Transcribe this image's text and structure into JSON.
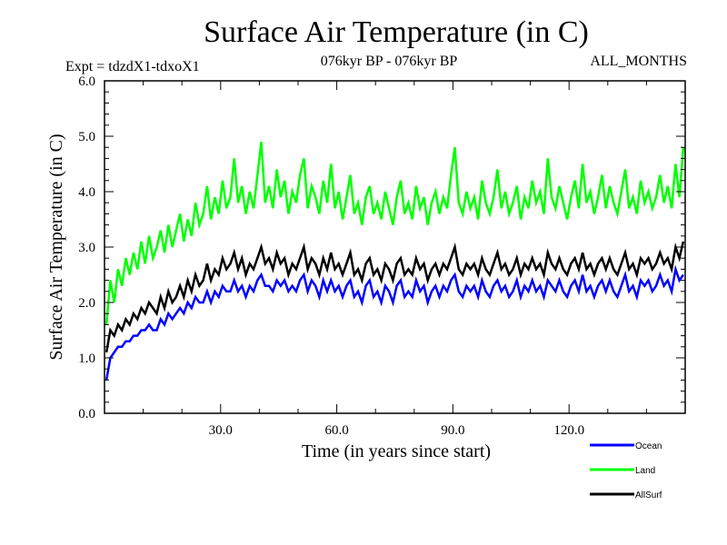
{
  "chart_data": {
    "type": "line",
    "title": "Surface Air Temperature (in C)",
    "subtitle_left": "Expt = tdzdX1-tdxoX1",
    "subtitle_center": "076kyr BP - 076kyr BP",
    "subtitle_right": "ALL_MONTHS",
    "xlabel": "Time (in years since start)",
    "ylabel": "Surface Air Temperature (in C)",
    "xlim": [
      0,
      150
    ],
    "ylim": [
      0.0,
      6.0
    ],
    "x_ticks": [
      30,
      60,
      90,
      120
    ],
    "x_tick_labels": [
      "30.0",
      "60.0",
      "90.0",
      "120.0"
    ],
    "x_minor_step": 10,
    "y_ticks": [
      0,
      1,
      2,
      3,
      4,
      5,
      6
    ],
    "y_tick_labels": [
      "0.0",
      "1.0",
      "2.0",
      "3.0",
      "4.0",
      "5.0",
      "6.0"
    ],
    "y_minor_step": 0.2,
    "grid": false,
    "legend_position": "bottom-right",
    "x_start": 0.5,
    "x_step": 1,
    "series": [
      {
        "name": "Land",
        "color": "#00ff00",
        "values": [
          1.6,
          2.4,
          2.0,
          2.6,
          2.3,
          2.8,
          2.5,
          2.9,
          2.6,
          3.1,
          2.7,
          3.2,
          2.8,
          3.0,
          3.3,
          2.9,
          3.4,
          3.0,
          3.3,
          3.6,
          3.1,
          3.5,
          3.2,
          3.8,
          3.4,
          3.6,
          4.1,
          3.5,
          3.9,
          3.6,
          4.2,
          3.7,
          3.9,
          4.6,
          3.8,
          4.1,
          3.6,
          4.0,
          3.7,
          4.3,
          4.9,
          3.8,
          4.1,
          3.7,
          4.4,
          3.9,
          4.2,
          3.6,
          4.0,
          3.8,
          4.3,
          4.6,
          3.7,
          4.1,
          3.9,
          3.6,
          4.2,
          3.8,
          4.5,
          3.7,
          4.0,
          3.5,
          3.9,
          4.3,
          3.6,
          3.8,
          3.4,
          3.9,
          4.1,
          3.6,
          3.8,
          3.5,
          4.0,
          3.7,
          3.4,
          3.9,
          4.2,
          3.6,
          3.8,
          3.5,
          4.1,
          3.7,
          3.9,
          3.4,
          3.8,
          4.0,
          3.6,
          3.9,
          3.7,
          4.3,
          4.8,
          3.8,
          3.6,
          4.0,
          3.7,
          3.9,
          3.5,
          4.2,
          3.8,
          3.6,
          3.9,
          4.4,
          3.7,
          4.0,
          3.6,
          3.8,
          4.1,
          3.5,
          3.9,
          3.7,
          4.2,
          3.8,
          4.0,
          3.6,
          4.6,
          3.9,
          3.7,
          4.1,
          3.8,
          3.5,
          3.9,
          4.2,
          3.7,
          4.5,
          3.8,
          4.0,
          3.6,
          3.9,
          4.3,
          3.7,
          4.1,
          3.8,
          3.6,
          4.0,
          4.4,
          3.7,
          3.9,
          3.6,
          4.2,
          3.8,
          4.0,
          3.7,
          3.9,
          4.3,
          3.8,
          4.1,
          3.7,
          4.5,
          3.9,
          4.8
        ]
      },
      {
        "name": "AllSurf",
        "color": "#000000",
        "values": [
          1.1,
          1.5,
          1.4,
          1.6,
          1.5,
          1.7,
          1.6,
          1.8,
          1.7,
          1.9,
          1.8,
          2.0,
          1.9,
          1.8,
          2.1,
          1.9,
          2.2,
          2.0,
          2.1,
          2.3,
          2.1,
          2.4,
          2.2,
          2.5,
          2.3,
          2.4,
          2.7,
          2.4,
          2.6,
          2.5,
          2.8,
          2.6,
          2.7,
          2.9,
          2.6,
          2.8,
          2.5,
          2.7,
          2.6,
          2.8,
          3.0,
          2.7,
          2.8,
          2.6,
          2.9,
          2.7,
          2.8,
          2.5,
          2.7,
          2.6,
          2.8,
          3.0,
          2.6,
          2.8,
          2.7,
          2.5,
          2.8,
          2.6,
          2.9,
          2.6,
          2.7,
          2.5,
          2.7,
          2.9,
          2.5,
          2.6,
          2.4,
          2.7,
          2.8,
          2.5,
          2.6,
          2.4,
          2.7,
          2.6,
          2.4,
          2.7,
          2.8,
          2.5,
          2.6,
          2.5,
          2.8,
          2.6,
          2.7,
          2.4,
          2.6,
          2.7,
          2.5,
          2.7,
          2.6,
          2.8,
          3.0,
          2.6,
          2.5,
          2.7,
          2.6,
          2.7,
          2.5,
          2.8,
          2.6,
          2.5,
          2.7,
          2.9,
          2.6,
          2.7,
          2.5,
          2.6,
          2.8,
          2.5,
          2.7,
          2.6,
          2.8,
          2.6,
          2.7,
          2.5,
          2.9,
          2.7,
          2.6,
          2.8,
          2.6,
          2.5,
          2.7,
          2.8,
          2.6,
          2.9,
          2.6,
          2.7,
          2.5,
          2.7,
          2.8,
          2.6,
          2.8,
          2.6,
          2.5,
          2.7,
          2.9,
          2.6,
          2.7,
          2.5,
          2.8,
          2.7,
          2.8,
          2.6,
          2.7,
          2.9,
          2.7,
          2.8,
          2.6,
          3.0,
          2.8,
          3.1
        ]
      },
      {
        "name": "Ocean",
        "color": "#0000ff",
        "values": [
          0.6,
          1.0,
          1.1,
          1.2,
          1.2,
          1.3,
          1.3,
          1.4,
          1.4,
          1.5,
          1.5,
          1.6,
          1.5,
          1.5,
          1.7,
          1.6,
          1.8,
          1.7,
          1.8,
          1.9,
          1.8,
          2.0,
          1.9,
          2.1,
          2.0,
          2.0,
          2.2,
          2.0,
          2.2,
          2.1,
          2.3,
          2.2,
          2.2,
          2.4,
          2.2,
          2.3,
          2.1,
          2.3,
          2.2,
          2.4,
          2.5,
          2.3,
          2.3,
          2.2,
          2.4,
          2.3,
          2.4,
          2.2,
          2.3,
          2.2,
          2.4,
          2.5,
          2.2,
          2.4,
          2.3,
          2.1,
          2.4,
          2.2,
          2.4,
          2.2,
          2.3,
          2.1,
          2.3,
          2.4,
          2.1,
          2.2,
          2.0,
          2.3,
          2.4,
          2.1,
          2.2,
          2.0,
          2.3,
          2.2,
          2.0,
          2.3,
          2.4,
          2.1,
          2.2,
          2.1,
          2.4,
          2.2,
          2.3,
          2.0,
          2.2,
          2.3,
          2.1,
          2.3,
          2.2,
          2.4,
          2.5,
          2.2,
          2.1,
          2.3,
          2.2,
          2.3,
          2.1,
          2.4,
          2.2,
          2.1,
          2.3,
          2.4,
          2.2,
          2.3,
          2.1,
          2.2,
          2.4,
          2.1,
          2.3,
          2.2,
          2.4,
          2.2,
          2.3,
          2.1,
          2.4,
          2.3,
          2.2,
          2.4,
          2.2,
          2.1,
          2.3,
          2.4,
          2.2,
          2.5,
          2.2,
          2.3,
          2.1,
          2.3,
          2.4,
          2.2,
          2.4,
          2.2,
          2.1,
          2.3,
          2.5,
          2.2,
          2.3,
          2.1,
          2.4,
          2.3,
          2.4,
          2.2,
          2.3,
          2.5,
          2.3,
          2.4,
          2.2,
          2.6,
          2.4,
          2.5
        ]
      }
    ],
    "legend": [
      {
        "name": "Ocean",
        "color": "#0000ff"
      },
      {
        "name": "Land",
        "color": "#00ff00"
      },
      {
        "name": "AllSurf",
        "color": "#000000"
      }
    ]
  }
}
